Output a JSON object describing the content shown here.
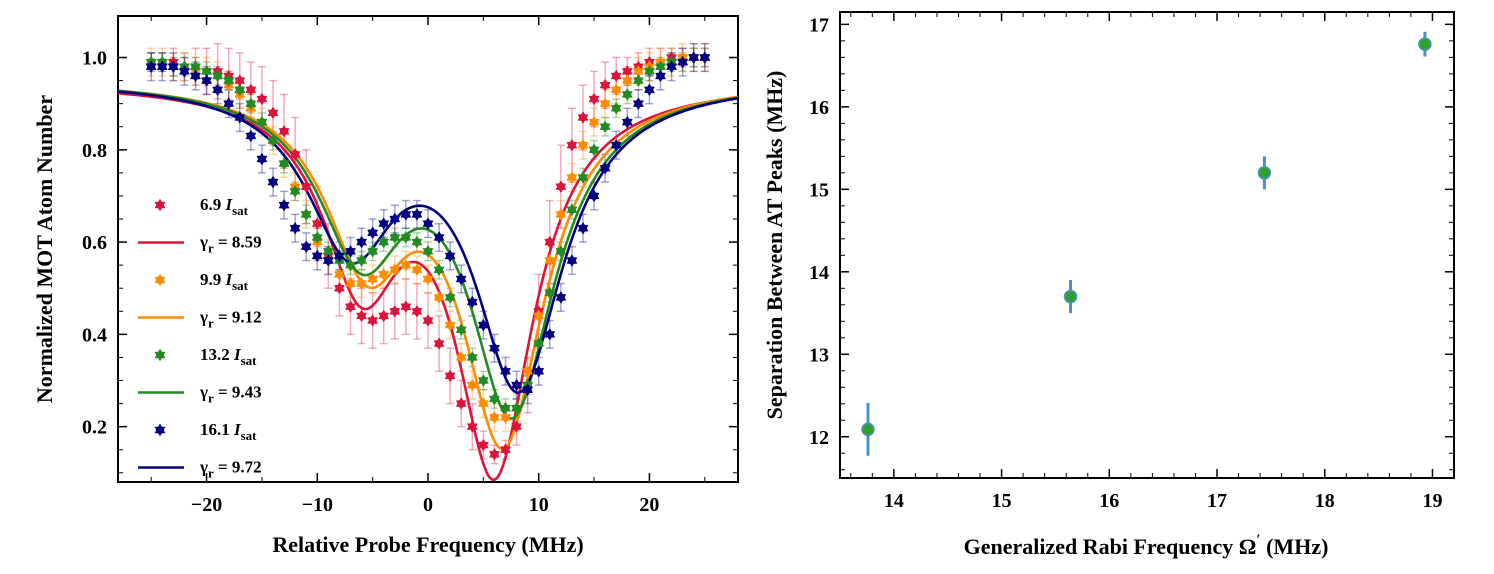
{
  "chart_data": [
    {
      "type": "scatter",
      "title": "",
      "xlabel": "Relative Probe Frequency (MHz)",
      "ylabel": "Normalized MOT Atom Number",
      "xlim": [
        -28,
        28
      ],
      "ylim": [
        0.08,
        1.09
      ],
      "xticks": [
        -20,
        -10,
        0,
        10,
        20
      ],
      "xtick_labels": [
        "−20",
        "−10",
        "0",
        "10",
        "20"
      ],
      "yticks": [
        0.2,
        0.4,
        0.6,
        0.8,
        1.0
      ],
      "ytick_labels": [
        "0.2",
        "0.4",
        "0.6",
        "0.8",
        "1.0"
      ],
      "legend_position": "middle-left",
      "series": [
        {
          "name": "6.9 I_sat",
          "legend_text": "6.9 ",
          "legend_sym": "I",
          "legend_sub": "sat",
          "fit_label": "γ",
          "fit_sub": "r",
          "fit_value": " = 8.59",
          "gamma": 8.59,
          "color": "#dc143c",
          "fit": {
            "base": 0.95,
            "gamma_fit": 8.59,
            "a1": 0.4,
            "c1": -6.0,
            "a2": 0.82,
            "c2": 6.0
          },
          "x": [
            -25,
            -24,
            -23,
            -22,
            -21,
            -20,
            -19,
            -18,
            -17,
            -16,
            -15,
            -14,
            -13,
            -12,
            -11,
            -10,
            -9,
            -8,
            -7,
            -6,
            -5,
            -4,
            -3,
            -2,
            -1,
            0,
            1,
            2,
            3,
            4,
            5,
            6,
            7,
            8,
            9,
            10,
            11,
            12,
            13,
            14,
            15,
            16,
            17,
            18,
            19,
            20,
            21,
            22,
            23,
            24,
            25
          ],
          "y": [
            0.99,
            0.99,
            0.99,
            0.98,
            0.98,
            0.97,
            0.97,
            0.96,
            0.95,
            0.93,
            0.91,
            0.88,
            0.84,
            0.79,
            0.72,
            0.64,
            0.57,
            0.5,
            0.46,
            0.44,
            0.43,
            0.44,
            0.45,
            0.46,
            0.45,
            0.43,
            0.38,
            0.31,
            0.25,
            0.2,
            0.16,
            0.14,
            0.15,
            0.2,
            0.29,
            0.45,
            0.6,
            0.72,
            0.81,
            0.87,
            0.91,
            0.94,
            0.96,
            0.97,
            0.98,
            0.99,
            0.99,
            1.0,
            1.0,
            1.0,
            1.0
          ],
          "err": [
            0.02,
            0.02,
            0.03,
            0.03,
            0.04,
            0.05,
            0.06,
            0.06,
            0.06,
            0.06,
            0.07,
            0.07,
            0.08,
            0.08,
            0.08,
            0.08,
            0.07,
            0.06,
            0.06,
            0.06,
            0.06,
            0.06,
            0.06,
            0.06,
            0.06,
            0.06,
            0.06,
            0.06,
            0.05,
            0.05,
            0.03,
            0.02,
            0.02,
            0.04,
            0.06,
            0.08,
            0.09,
            0.09,
            0.08,
            0.07,
            0.06,
            0.05,
            0.04,
            0.03,
            0.03,
            0.03,
            0.03,
            0.02,
            0.02,
            0.02,
            0.02
          ]
        },
        {
          "name": "9.9 I_sat",
          "legend_text": "9.9 ",
          "legend_sym": "I",
          "legend_sub": "sat",
          "fit_label": "γ",
          "fit_sub": "r",
          "fit_value": " = 9.12",
          "gamma": 9.12,
          "color": "#ff8c00",
          "fit": {
            "base": 0.955,
            "gamma_fit": 9.12,
            "a1": 0.36,
            "c1": -5.5,
            "a2": 0.76,
            "c2": 6.8
          },
          "x": [
            -25,
            -24,
            -23,
            -22,
            -21,
            -20,
            -19,
            -18,
            -17,
            -16,
            -15,
            -14,
            -13,
            -12,
            -11,
            -10,
            -9,
            -8,
            -7,
            -6,
            -5,
            -4,
            -3,
            -2,
            -1,
            0,
            1,
            2,
            3,
            4,
            5,
            6,
            7,
            8,
            9,
            10,
            11,
            12,
            13,
            14,
            15,
            16,
            17,
            18,
            19,
            20,
            21,
            22,
            23,
            24,
            25
          ],
          "y": [
            0.99,
            0.99,
            0.98,
            0.98,
            0.97,
            0.97,
            0.96,
            0.94,
            0.92,
            0.89,
            0.86,
            0.82,
            0.77,
            0.72,
            0.66,
            0.6,
            0.56,
            0.53,
            0.51,
            0.51,
            0.52,
            0.53,
            0.54,
            0.55,
            0.54,
            0.52,
            0.48,
            0.42,
            0.35,
            0.29,
            0.25,
            0.22,
            0.22,
            0.24,
            0.32,
            0.44,
            0.56,
            0.66,
            0.74,
            0.81,
            0.86,
            0.9,
            0.93,
            0.95,
            0.97,
            0.98,
            0.99,
            0.99,
            1.0,
            1.0,
            1.0
          ],
          "err": [
            0.03,
            0.03,
            0.03,
            0.03,
            0.03,
            0.03,
            0.03,
            0.03,
            0.03,
            0.03,
            0.03,
            0.03,
            0.03,
            0.03,
            0.03,
            0.03,
            0.03,
            0.03,
            0.03,
            0.03,
            0.03,
            0.03,
            0.03,
            0.03,
            0.03,
            0.03,
            0.03,
            0.03,
            0.03,
            0.03,
            0.03,
            0.03,
            0.03,
            0.03,
            0.03,
            0.03,
            0.03,
            0.03,
            0.03,
            0.03,
            0.03,
            0.03,
            0.03,
            0.03,
            0.03,
            0.03,
            0.03,
            0.03,
            0.03,
            0.03,
            0.03
          ]
        },
        {
          "name": "13.2 I_sat",
          "legend_text": "13.2 ",
          "legend_sym": "I",
          "legend_sub": "sat",
          "fit_label": "γ",
          "fit_sub": "r",
          "fit_value": " = 9.43",
          "gamma": 9.43,
          "color": "#228b22",
          "fit": {
            "base": 0.955,
            "gamma_fit": 9.43,
            "a1": 0.35,
            "c1": -6.0,
            "a2": 0.7,
            "c2": 7.6
          },
          "x": [
            -25,
            -24,
            -23,
            -22,
            -21,
            -20,
            -19,
            -18,
            -17,
            -16,
            -15,
            -14,
            -13,
            -12,
            -11,
            -10,
            -9,
            -8,
            -7,
            -6,
            -5,
            -4,
            -3,
            -2,
            -1,
            0,
            1,
            2,
            3,
            4,
            5,
            6,
            7,
            8,
            9,
            10,
            11,
            12,
            13,
            14,
            15,
            16,
            17,
            18,
            19,
            20,
            21,
            22,
            23,
            24,
            25
          ],
          "y": [
            0.99,
            0.99,
            0.98,
            0.98,
            0.98,
            0.97,
            0.96,
            0.95,
            0.93,
            0.9,
            0.86,
            0.82,
            0.77,
            0.71,
            0.66,
            0.61,
            0.58,
            0.56,
            0.55,
            0.56,
            0.58,
            0.6,
            0.61,
            0.61,
            0.6,
            0.58,
            0.54,
            0.48,
            0.41,
            0.35,
            0.3,
            0.26,
            0.24,
            0.24,
            0.29,
            0.38,
            0.49,
            0.58,
            0.67,
            0.74,
            0.8,
            0.85,
            0.89,
            0.92,
            0.95,
            0.97,
            0.98,
            0.99,
            0.99,
            1.0,
            1.0
          ],
          "err": [
            0.02,
            0.02,
            0.02,
            0.02,
            0.02,
            0.02,
            0.02,
            0.02,
            0.02,
            0.02,
            0.02,
            0.02,
            0.02,
            0.02,
            0.02,
            0.02,
            0.02,
            0.02,
            0.02,
            0.02,
            0.02,
            0.02,
            0.02,
            0.02,
            0.02,
            0.02,
            0.02,
            0.02,
            0.02,
            0.02,
            0.02,
            0.02,
            0.02,
            0.02,
            0.02,
            0.02,
            0.02,
            0.02,
            0.02,
            0.02,
            0.02,
            0.02,
            0.02,
            0.02,
            0.02,
            0.02,
            0.02,
            0.02,
            0.02,
            0.02,
            0.02
          ]
        },
        {
          "name": "16.1 I_sat",
          "legend_text": "16.1 ",
          "legend_sym": "I",
          "legend_sub": "sat",
          "fit_label": "γ",
          "fit_sub": "r",
          "fit_value": " = 9.72",
          "gamma": 9.72,
          "color": "#000080",
          "fit": {
            "base": 0.955,
            "gamma_fit": 9.72,
            "a1": 0.34,
            "c1": -7.0,
            "a2": 0.65,
            "c2": 8.2
          },
          "x": [
            -25,
            -24,
            -23,
            -22,
            -21,
            -20,
            -19,
            -18,
            -17,
            -16,
            -15,
            -14,
            -13,
            -12,
            -11,
            -10,
            -9,
            -8,
            -7,
            -6,
            -5,
            -4,
            -3,
            -2,
            -1,
            0,
            1,
            2,
            3,
            4,
            5,
            6,
            7,
            8,
            9,
            10,
            11,
            12,
            13,
            14,
            15,
            16,
            17,
            18,
            19,
            20,
            21,
            22,
            23,
            24,
            25
          ],
          "y": [
            0.98,
            0.98,
            0.98,
            0.97,
            0.96,
            0.95,
            0.93,
            0.9,
            0.87,
            0.83,
            0.78,
            0.73,
            0.68,
            0.63,
            0.59,
            0.57,
            0.56,
            0.57,
            0.58,
            0.6,
            0.62,
            0.64,
            0.65,
            0.66,
            0.66,
            0.64,
            0.61,
            0.57,
            0.52,
            0.47,
            0.42,
            0.37,
            0.32,
            0.29,
            0.28,
            0.32,
            0.4,
            0.48,
            0.56,
            0.63,
            0.7,
            0.76,
            0.81,
            0.86,
            0.9,
            0.93,
            0.96,
            0.98,
            0.99,
            1.0,
            1.0
          ],
          "err": [
            0.03,
            0.03,
            0.03,
            0.03,
            0.03,
            0.03,
            0.03,
            0.03,
            0.03,
            0.03,
            0.03,
            0.03,
            0.03,
            0.03,
            0.03,
            0.03,
            0.03,
            0.03,
            0.03,
            0.03,
            0.03,
            0.03,
            0.03,
            0.03,
            0.03,
            0.03,
            0.03,
            0.03,
            0.03,
            0.03,
            0.03,
            0.03,
            0.03,
            0.03,
            0.03,
            0.03,
            0.03,
            0.03,
            0.03,
            0.03,
            0.03,
            0.03,
            0.03,
            0.03,
            0.03,
            0.03,
            0.03,
            0.03,
            0.03,
            0.03,
            0.03
          ]
        }
      ]
    },
    {
      "type": "scatter",
      "title": "",
      "xlabel": "Generalized Rabi Frequency Ω",
      "xlabel_prime": "′",
      "xlabel_tail": " (MHz)",
      "ylabel": "Separation Between AT Peaks (MHz)",
      "xlim": [
        13.5,
        19.2
      ],
      "ylim": [
        11.5,
        17.15
      ],
      "xticks": [
        14,
        15,
        16,
        17,
        18,
        19
      ],
      "xtick_labels": [
        "14",
        "15",
        "16",
        "17",
        "18",
        "19"
      ],
      "yticks": [
        12,
        13,
        14,
        15,
        16,
        17
      ],
      "ytick_labels": [
        "12",
        "13",
        "14",
        "15",
        "16",
        "17"
      ],
      "marker_color": "#2ca02c",
      "errorbar_color": "#4a90c4",
      "x": [
        13.76,
        15.64,
        17.44,
        18.93
      ],
      "y": [
        12.09,
        13.7,
        15.2,
        16.76
      ],
      "yerr": [
        0.32,
        0.2,
        0.2,
        0.15
      ]
    }
  ]
}
